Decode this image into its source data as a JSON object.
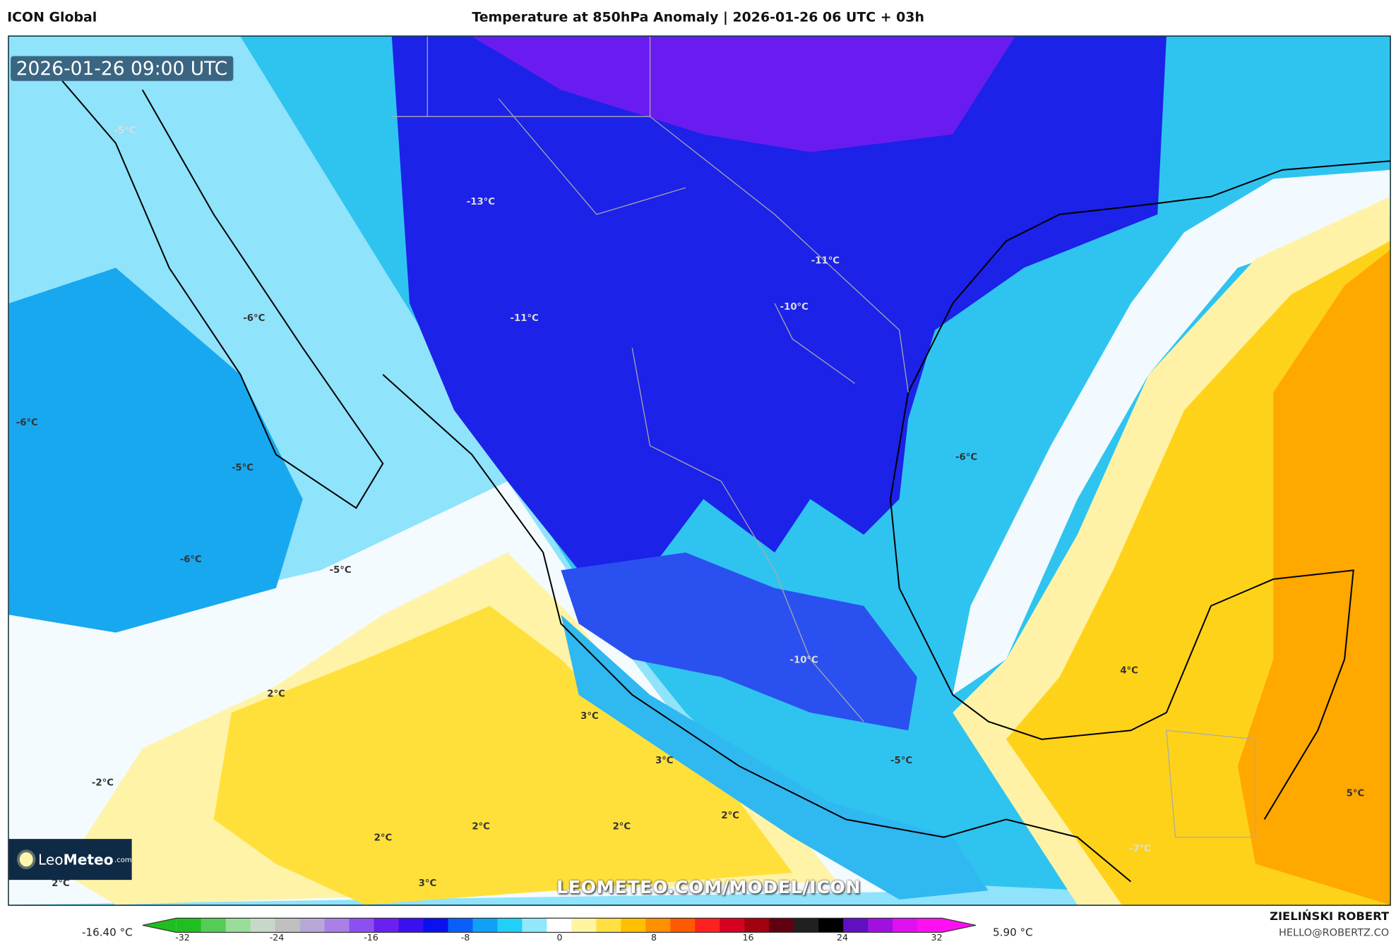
{
  "header": {
    "model": "ICON Global",
    "title": "Temperature at 850hPa Anomaly | 2026-01-26 06 UTC + 03h"
  },
  "map": {
    "timestamp": "2026-01-26 09:00 UTC",
    "watermark": "LEOMETEO.COM/MODEL/ICON",
    "labels": [
      "-5°C",
      "-13°C",
      "-11°C",
      "-11°C",
      "-10°C",
      "-6°C",
      "-6°C",
      "-5°C",
      "-6°C",
      "-6°C",
      "-5°C",
      "-10°C",
      "4°C",
      "2°C",
      "3°C",
      "3°C",
      "-5°C",
      "-2°C",
      "2°C",
      "2°C",
      "2°C",
      "2°C",
      "3°C",
      "2°C",
      "5°C",
      "-7°C"
    ]
  },
  "logo": {
    "text_light": "Leo",
    "text_bold": "Meteo",
    "suffix": ".com"
  },
  "colorbar": {
    "min_label": "-16.40 °C",
    "max_label": "5.90 °C",
    "ticks": [
      "-32",
      "-24",
      "-16",
      "-8",
      "0",
      "8",
      "16",
      "24",
      "32"
    ],
    "range": [
      -32,
      32
    ],
    "colors": [
      "#1fbf1f",
      "#55cc55",
      "#99dd99",
      "#c8d8c8",
      "#c0c0c0",
      "#b8a8d8",
      "#a880e8",
      "#8c50f0",
      "#6a20f0",
      "#3a10f0",
      "#0a10f0",
      "#0860f8",
      "#10a0f8",
      "#20d0f8",
      "#90e8fb",
      "#ffffff",
      "#fff4a0",
      "#ffe040",
      "#ffc000",
      "#ff9000",
      "#ff5a00",
      "#ff2020",
      "#d80020",
      "#a00010",
      "#600010",
      "#202020",
      "#000000",
      "#6010c0",
      "#a010e0",
      "#e010f0",
      "#ff10f0"
    ]
  },
  "author": {
    "name": "ZIELIŃSKI ROBERT",
    "email": "HELLO@ROBERTZ.CO"
  },
  "colors": {
    "cold_core": "#1a10e0",
    "cold": "#2fc4f0",
    "neutral": "#ffffff",
    "warm": "#ffd21a",
    "warm_strong": "#ffa500"
  }
}
